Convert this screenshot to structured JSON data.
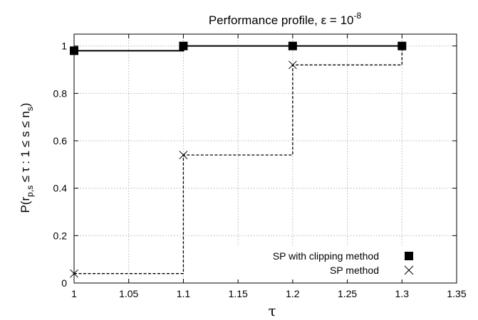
{
  "chart_data": {
    "type": "line",
    "title": "Performance profile, ε = 10",
    "title_superscript": "-8",
    "xlabel": "τ",
    "ylabel": "P(r",
    "ylabel_sub_1": "p,s",
    "ylabel_mid": " ≤ τ : 1 ≤ s ≤ n",
    "ylabel_sub_2": "s",
    "ylabel_end": ")",
    "xlim": [
      1,
      1.35
    ],
    "ylim": [
      0,
      1.05
    ],
    "xticks": [
      1,
      1.05,
      1.1,
      1.15,
      1.2,
      1.25,
      1.3,
      1.35
    ],
    "xtick_labels": [
      "1",
      "1.05",
      "1.1",
      "1.15",
      "1.2",
      "1.25",
      "1.3",
      "1.35"
    ],
    "yticks": [
      0,
      0.2,
      0.4,
      0.6,
      0.8,
      1
    ],
    "ytick_labels": [
      "0",
      "0.2",
      "0.4",
      "0.6",
      "0.8",
      "1"
    ],
    "grid": true,
    "legend_position": "bottom-right",
    "series": [
      {
        "name": "SP with clipping method",
        "marker": "square",
        "line_style": "solid",
        "color": "#000000",
        "x": [
          1,
          1.1,
          1.2,
          1.3
        ],
        "y": [
          0.98,
          1.0,
          1.0,
          1.0
        ]
      },
      {
        "name": "SP method",
        "marker": "cross",
        "line_style": "dashed",
        "color": "#000000",
        "x": [
          1,
          1.1,
          1.2,
          1.3
        ],
        "y": [
          0.04,
          0.54,
          0.92,
          1.0
        ]
      }
    ]
  }
}
